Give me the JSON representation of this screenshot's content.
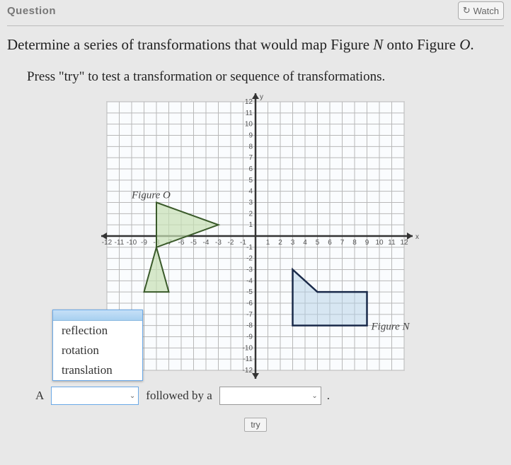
{
  "header": {
    "question_label": "Question",
    "watch_label": "Watch"
  },
  "prompt": {
    "pre": "Determine a series of transformations that would map Figure ",
    "figA": "N",
    "mid": " onto Figure ",
    "figB": "O",
    "post": "."
  },
  "sub_instruction": "Press \"try\" to test a transformation or sequence of transformations.",
  "chart": {
    "xlim": [
      -12,
      12
    ],
    "ylim": [
      -12,
      12
    ],
    "axis_y_label": "y",
    "axis_x_label": "x",
    "grid_color": "#b8b8b8",
    "panel_fill": "#dfeef8",
    "panel_stroke": "#888",
    "x_ticks_neg": [
      "-12",
      "-11",
      "-10",
      "-9",
      "-8",
      "-7",
      "-6",
      "-5",
      "-4",
      "-3",
      "-2",
      "-1"
    ],
    "x_ticks_pos": [
      "1",
      "2",
      "3",
      "4",
      "5",
      "6",
      "7",
      "8",
      "9",
      "10",
      "11",
      "12"
    ],
    "y_ticks_pos": [
      "1",
      "2",
      "3",
      "4",
      "5",
      "6",
      "7",
      "8",
      "9",
      "10",
      "11",
      "12"
    ],
    "y_ticks_neg": [
      "-1",
      "-2",
      "-3",
      "-4",
      "-5",
      "-6",
      "-7",
      "-8",
      "-9",
      "-10",
      "-11",
      "-12"
    ],
    "figureO": {
      "label": "Figure O",
      "fill": "#c6e0b4",
      "stroke": "#3a5a2a",
      "points": [
        [
          -8,
          3
        ],
        [
          -3,
          1
        ],
        [
          -8,
          -1
        ],
        [
          -7,
          -5
        ],
        [
          -9,
          -5
        ],
        [
          -8,
          -1
        ],
        [
          -8,
          3
        ]
      ]
    },
    "figureN": {
      "label": "Figure N",
      "fill": "#b4cfe6",
      "stroke": "#1a2a4a",
      "points": [
        [
          3,
          -8
        ],
        [
          3,
          -3
        ],
        [
          5,
          -5
        ],
        [
          9,
          -5
        ],
        [
          9,
          -8
        ],
        [
          3,
          -8
        ]
      ]
    }
  },
  "dropdown": {
    "options": [
      "reflection",
      "rotation",
      "translation"
    ]
  },
  "answer": {
    "prefix": "A",
    "middle": "followed by a",
    "suffix": "."
  },
  "try_label": "try"
}
